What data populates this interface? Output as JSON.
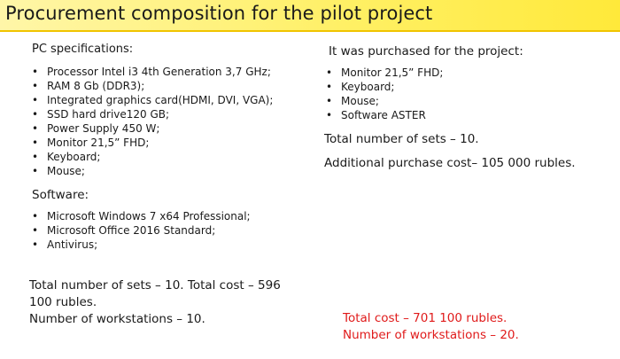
{
  "title": "Procurement composition for the pilot project",
  "left": {
    "pc_heading": "PC specifications:",
    "pc_items": [
      "Processor Intel i3 4th Generation 3,7 GHz;",
      "RAM 8 Gb (DDR3);",
      "Integrated graphics card(HDMI, DVI, VGA);",
      "SSD hard drive120 GB;",
      "Power Supply 450 W;",
      "Monitor 21,5” FHD;",
      "Keyboard;",
      "Mouse;"
    ],
    "software_heading": "Software:",
    "software_items": [
      "Microsoft Windows 7 x64 Professional;",
      "Microsoft Office 2016 Standard;",
      "Antivirus;"
    ],
    "summary_line1": "Total number of sets – 10.  Total cost – 596",
    "summary_line2": "100 rubles.",
    "summary_line3": "Number of workstations – 10."
  },
  "right": {
    "heading": "It was purchased for the project:",
    "items": [
      "Monitor 21,5” FHD;",
      "Keyboard;",
      "Mouse;",
      "Software ASTER"
    ],
    "sets_line": "Total number of sets – 10.",
    "cost_line": "Additional purchase cost– 105 000 rubles.",
    "total_cost": "Total cost – 701 100 rubles.",
    "total_workstations": "Number of workstations – 20."
  },
  "bullet_glyph": "•",
  "colors": {
    "title_bar": "#fff066",
    "title_bar_border": "#f0c400",
    "text": "#1a1a1a",
    "highlight": "#e01a1a"
  }
}
